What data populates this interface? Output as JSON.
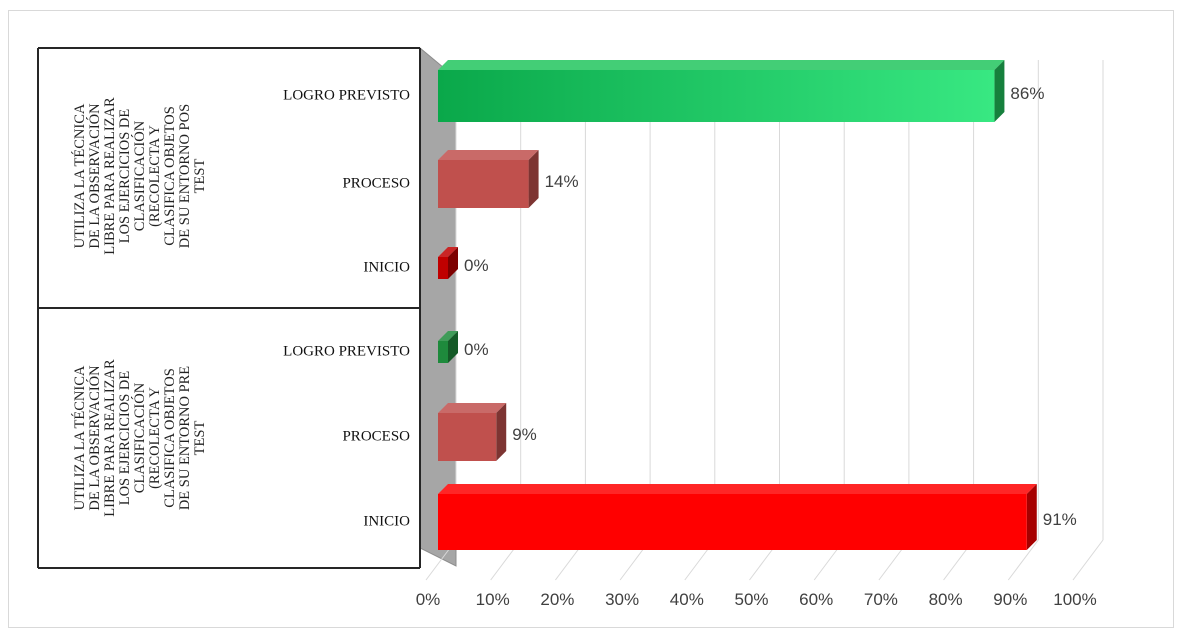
{
  "chart_data": {
    "type": "bar",
    "orientation": "horizontal",
    "style": "3d-clustered",
    "groups": [
      {
        "label": "UTILIZA LA TÉCNICA DE LA OBSERVACIÓN LIBRE PARA REALIZAR LOS EJERCICIOS DE CLASIFICACIÓN (RECOLECTA Y CLASIFICA OBJETOS DE SU ENTORNO POS TEST",
        "label_lines": [
          "UTILIZA LA TÉCNICA",
          "DE LA OBSERVACIÓN",
          "LIBRE PARA REALIZAR",
          "LOS EJERCICIOS DE",
          "CLASIFICACIÓN",
          "(RECOLECTA Y",
          "CLASIFICA OBJETOS",
          "DE SU ENTORNO POS",
          "TEST"
        ],
        "bars": [
          {
            "category": "LOGRO PREVISTO",
            "value": 86,
            "label": "86%",
            "color": "#22c55e"
          },
          {
            "category": "PROCESO",
            "value": 14,
            "label": "14%",
            "color": "#c0504d"
          },
          {
            "category": "INICIO",
            "value": 0,
            "label": "0%",
            "color": "#c00000"
          }
        ]
      },
      {
        "label": "UTILIZA LA TÉCNICA DE LA OBSERVACIÓN LIBRE PARA REALIZAR LOS EJERCICIOS DE CLASIFICACIÓN (RECOLECTA Y CLASIFICA OBJETOS DE SU ENTORNO PRE TEST",
        "label_lines": [
          "UTILIZA LA TÉCNICA",
          "DE LA OBSERVACIÓN",
          "LIBRE PARA REALIZAR",
          "LOS EJERCICIOS DE",
          "CLASIFICACIÓN",
          "(RECOLECTA Y",
          "CLASIFICA OBJETOS",
          "DE SU ENTORNO PRE",
          "TEST"
        ],
        "bars": [
          {
            "category": "LOGRO PREVISTO",
            "value": 0,
            "label": "0%",
            "color": "#1e8a3c"
          },
          {
            "category": "PROCESO",
            "value": 9,
            "label": "9%",
            "color": "#c0504d"
          },
          {
            "category": "INICIO",
            "value": 91,
            "label": "91%",
            "color": "#ff0000"
          }
        ]
      }
    ],
    "xlim": [
      0,
      100
    ],
    "x_ticks": [
      "0%",
      "10%",
      "20%",
      "30%",
      "40%",
      "50%",
      "60%",
      "70%",
      "80%",
      "90%",
      "100%"
    ],
    "grid": true,
    "legend": "none"
  }
}
